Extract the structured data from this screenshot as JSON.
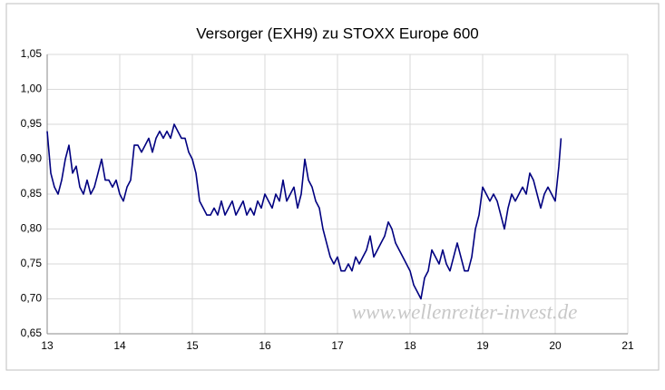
{
  "chart_data": {
    "type": "line",
    "title": "Versorger (EXH9) zu STOXX Europe 600",
    "annotation": "www.wellenreiter-invest.de",
    "x": [
      13.0,
      13.05,
      13.1,
      13.15,
      13.2,
      13.25,
      13.3,
      13.35,
      13.4,
      13.45,
      13.5,
      13.55,
      13.6,
      13.65,
      13.7,
      13.75,
      13.8,
      13.85,
      13.9,
      13.95,
      14.0,
      14.05,
      14.1,
      14.15,
      14.2,
      14.25,
      14.3,
      14.35,
      14.4,
      14.45,
      14.5,
      14.55,
      14.6,
      14.65,
      14.7,
      14.75,
      14.8,
      14.85,
      14.9,
      14.95,
      15.0,
      15.05,
      15.1,
      15.15,
      15.2,
      15.25,
      15.3,
      15.35,
      15.4,
      15.45,
      15.5,
      15.55,
      15.6,
      15.65,
      15.7,
      15.75,
      15.8,
      15.85,
      15.9,
      15.95,
      16.0,
      16.05,
      16.1,
      16.15,
      16.2,
      16.25,
      16.3,
      16.35,
      16.4,
      16.45,
      16.5,
      16.55,
      16.6,
      16.65,
      16.7,
      16.75,
      16.8,
      16.85,
      16.9,
      16.95,
      17.0,
      17.05,
      17.1,
      17.15,
      17.2,
      17.25,
      17.3,
      17.35,
      17.4,
      17.45,
      17.5,
      17.55,
      17.6,
      17.65,
      17.7,
      17.75,
      17.8,
      17.85,
      17.9,
      17.95,
      18.0,
      18.05,
      18.1,
      18.15,
      18.2,
      18.25,
      18.3,
      18.35,
      18.4,
      18.45,
      18.5,
      18.55,
      18.6,
      18.65,
      18.7,
      18.75,
      18.8,
      18.85,
      18.9,
      18.95,
      19.0,
      19.05,
      19.1,
      19.15,
      19.2,
      19.25,
      19.3,
      19.35,
      19.4,
      19.45,
      19.5,
      19.55,
      19.6,
      19.65,
      19.7,
      19.75,
      19.8,
      19.85,
      19.9,
      19.95,
      20.0,
      20.05,
      20.08
    ],
    "series": [
      {
        "name": "EXH9 / STOXX Europe 600",
        "color": "#000080",
        "values": [
          0.94,
          0.88,
          0.86,
          0.85,
          0.87,
          0.9,
          0.92,
          0.88,
          0.89,
          0.86,
          0.85,
          0.87,
          0.85,
          0.86,
          0.88,
          0.9,
          0.87,
          0.87,
          0.86,
          0.87,
          0.85,
          0.84,
          0.86,
          0.87,
          0.92,
          0.92,
          0.91,
          0.92,
          0.93,
          0.91,
          0.93,
          0.94,
          0.93,
          0.94,
          0.93,
          0.95,
          0.94,
          0.93,
          0.93,
          0.91,
          0.9,
          0.88,
          0.84,
          0.83,
          0.82,
          0.82,
          0.83,
          0.82,
          0.84,
          0.82,
          0.83,
          0.84,
          0.82,
          0.83,
          0.84,
          0.82,
          0.83,
          0.82,
          0.84,
          0.83,
          0.85,
          0.84,
          0.83,
          0.85,
          0.84,
          0.87,
          0.84,
          0.85,
          0.86,
          0.83,
          0.85,
          0.9,
          0.87,
          0.86,
          0.84,
          0.83,
          0.8,
          0.78,
          0.76,
          0.75,
          0.76,
          0.74,
          0.74,
          0.75,
          0.74,
          0.76,
          0.75,
          0.76,
          0.77,
          0.79,
          0.76,
          0.77,
          0.78,
          0.79,
          0.81,
          0.8,
          0.78,
          0.77,
          0.76,
          0.75,
          0.74,
          0.72,
          0.71,
          0.7,
          0.73,
          0.74,
          0.77,
          0.76,
          0.75,
          0.77,
          0.75,
          0.74,
          0.76,
          0.78,
          0.76,
          0.74,
          0.74,
          0.76,
          0.8,
          0.82,
          0.86,
          0.85,
          0.84,
          0.85,
          0.84,
          0.82,
          0.8,
          0.83,
          0.85,
          0.84,
          0.85,
          0.86,
          0.85,
          0.88,
          0.87,
          0.85,
          0.83,
          0.85,
          0.86,
          0.85,
          0.84,
          0.89,
          0.93
        ]
      }
    ],
    "xlim": [
      13,
      21
    ],
    "xticks": [
      13,
      14,
      15,
      16,
      17,
      18,
      19,
      20,
      21
    ],
    "ylim": [
      0.65,
      1.05
    ],
    "yticks": [
      {
        "value": 0.65,
        "label": "0,65"
      },
      {
        "value": 0.7,
        "label": "0,70"
      },
      {
        "value": 0.75,
        "label": "0,75"
      },
      {
        "value": 0.8,
        "label": "0,80"
      },
      {
        "value": 0.85,
        "label": "0,85"
      },
      {
        "value": 0.9,
        "label": "0,90"
      },
      {
        "value": 0.95,
        "label": "0,95"
      },
      {
        "value": 1.0,
        "label": "1,00"
      },
      {
        "value": 1.05,
        "label": "1,05"
      }
    ],
    "grid": true
  }
}
